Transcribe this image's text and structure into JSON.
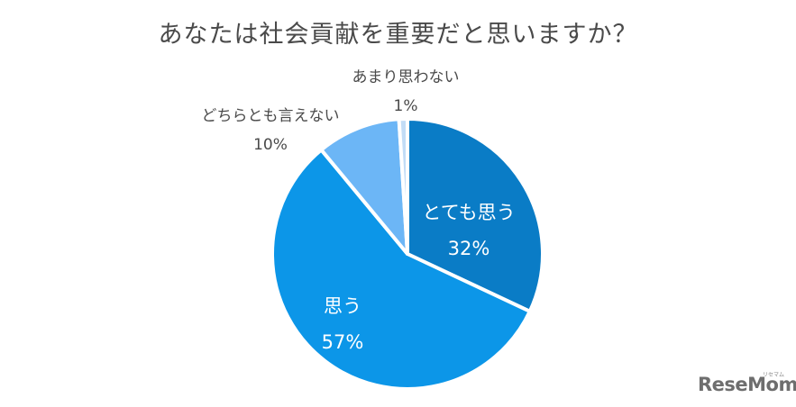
{
  "title": "あなたは社会貢献を重要だと思いますか？",
  "chart_data": {
    "type": "pie",
    "title": "あなたは社会貢献を重要だと思いますか？",
    "categories": [
      "とても思う",
      "思う",
      "どちらとも言えない",
      "あまり思わない"
    ],
    "values": [
      32,
      57,
      10,
      1
    ],
    "unit": "%",
    "colors": [
      "#0a7cc6",
      "#0c96e8",
      "#6cb6f6",
      "#c2dcf6"
    ],
    "start_angle": "12 o'clock",
    "direction": "clockwise",
    "legend": "none (labels on/near slices)"
  },
  "labels": {
    "very_much": {
      "name": "とても思う",
      "pct": "32%"
    },
    "agree": {
      "name": "思う",
      "pct": "57%"
    },
    "neutral": {
      "name": "どちらとも言えない",
      "pct": "10%"
    },
    "not_much": {
      "name": "あまり思わない",
      "pct": "1%"
    }
  },
  "logo": {
    "text": "ReseMom",
    "sub": "リセマム"
  }
}
